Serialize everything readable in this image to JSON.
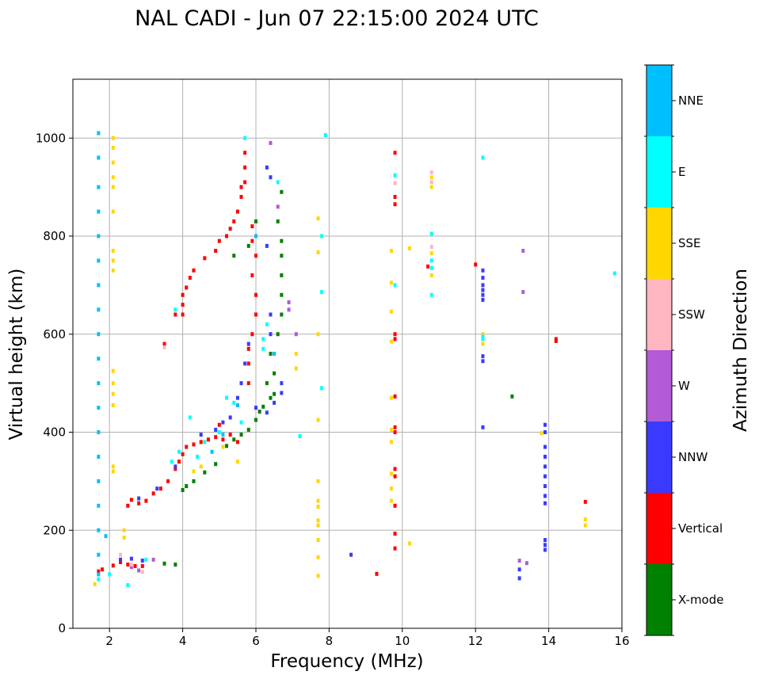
{
  "chart_data": {
    "type": "scatter",
    "title": "NAL CADI - Jun 07 22:15:00 2024 UTC",
    "xlabel": "Frequency (MHz)",
    "ylabel": "Virtual height (km)",
    "xlim": [
      1,
      16
    ],
    "ylim": [
      0,
      1120
    ],
    "xticks": [
      2,
      4,
      6,
      8,
      10,
      12,
      14,
      16
    ],
    "yticks": [
      0,
      200,
      400,
      600,
      800,
      1000
    ],
    "grid": true,
    "colorbar": {
      "label": "Azimuth Direction",
      "categories": [
        "X-mode",
        "Vertical",
        "NNW",
        "W",
        "SSW",
        "SSE",
        "E",
        "NNE"
      ],
      "colors": [
        "#008000",
        "#ff0000",
        "#3a3aff",
        "#b35ad6",
        "#ffb6c1",
        "#ffd700",
        "#00ffff",
        "#00bfff"
      ]
    },
    "echoes": [
      {
        "name": "X-mode",
        "points": [
          [
            3.5,
            132
          ],
          [
            3.8,
            130
          ],
          [
            4.0,
            282
          ],
          [
            4.1,
            290
          ],
          [
            4.3,
            300
          ],
          [
            4.6,
            318
          ],
          [
            4.9,
            335
          ],
          [
            5.2,
            372
          ],
          [
            5.4,
            385
          ],
          [
            5.6,
            395
          ],
          [
            5.8,
            405
          ],
          [
            6.0,
            425
          ],
          [
            6.1,
            442
          ],
          [
            6.2,
            452
          ],
          [
            6.4,
            470
          ],
          [
            6.5,
            478
          ],
          [
            6.3,
            500
          ],
          [
            6.5,
            520
          ],
          [
            6.4,
            560
          ],
          [
            6.6,
            600
          ],
          [
            6.7,
            640
          ],
          [
            6.7,
            680
          ],
          [
            6.7,
            720
          ],
          [
            6.7,
            760
          ],
          [
            6.7,
            790
          ],
          [
            6.6,
            830
          ],
          [
            6.7,
            890
          ],
          [
            6.0,
            830
          ],
          [
            5.8,
            780
          ],
          [
            5.4,
            760
          ],
          [
            13.0,
            473
          ]
        ]
      },
      {
        "name": "Vertical",
        "points": [
          [
            1.7,
            116
          ],
          [
            1.8,
            120
          ],
          [
            2.1,
            128
          ],
          [
            2.3,
            135
          ],
          [
            2.5,
            130
          ],
          [
            2.7,
            127
          ],
          [
            2.9,
            127
          ],
          [
            2.5,
            250
          ],
          [
            2.6,
            262
          ],
          [
            2.8,
            255
          ],
          [
            3.0,
            260
          ],
          [
            3.2,
            275
          ],
          [
            3.4,
            285
          ],
          [
            3.6,
            300
          ],
          [
            3.8,
            325
          ],
          [
            3.9,
            340
          ],
          [
            4.0,
            355
          ],
          [
            4.1,
            370
          ],
          [
            4.3,
            375
          ],
          [
            4.5,
            380
          ],
          [
            4.7,
            385
          ],
          [
            4.9,
            390
          ],
          [
            5.1,
            385
          ],
          [
            5.3,
            395
          ],
          [
            5.5,
            380
          ],
          [
            5.0,
            415
          ],
          [
            4.0,
            640
          ],
          [
            4.0,
            660
          ],
          [
            4.0,
            680
          ],
          [
            4.1,
            695
          ],
          [
            4.2,
            715
          ],
          [
            4.3,
            730
          ],
          [
            4.6,
            755
          ],
          [
            4.9,
            770
          ],
          [
            5.0,
            790
          ],
          [
            5.2,
            800
          ],
          [
            5.3,
            815
          ],
          [
            5.4,
            830
          ],
          [
            5.5,
            850
          ],
          [
            5.6,
            880
          ],
          [
            5.7,
            910
          ],
          [
            5.7,
            940
          ],
          [
            5.7,
            970
          ],
          [
            5.6,
            900
          ],
          [
            5.9,
            820
          ],
          [
            5.9,
            790
          ],
          [
            6.0,
            760
          ],
          [
            5.9,
            720
          ],
          [
            6.0,
            680
          ],
          [
            6.0,
            640
          ],
          [
            5.9,
            600
          ],
          [
            5.8,
            570
          ],
          [
            5.8,
            540
          ],
          [
            5.8,
            500
          ],
          [
            9.8,
            970
          ],
          [
            9.8,
            880
          ],
          [
            9.8,
            865
          ],
          [
            9.8,
            600
          ],
          [
            9.8,
            590
          ],
          [
            9.8,
            410
          ],
          [
            9.8,
            400
          ],
          [
            9.8,
            325
          ],
          [
            9.8,
            310
          ],
          [
            9.8,
            250
          ],
          [
            9.8,
            193
          ],
          [
            9.8,
            163
          ],
          [
            9.3,
            111
          ],
          [
            10.7,
            738
          ],
          [
            12.0,
            742
          ],
          [
            14.2,
            590
          ],
          [
            14.2,
            586
          ],
          [
            15.0,
            258
          ],
          [
            9.8,
            473
          ],
          [
            3.5,
            580
          ],
          [
            3.8,
            640
          ]
        ]
      },
      {
        "name": "NNW",
        "points": [
          [
            2.3,
            140
          ],
          [
            2.6,
            142
          ],
          [
            2.9,
            138
          ],
          [
            2.8,
            265
          ],
          [
            3.3,
            285
          ],
          [
            3.8,
            330
          ],
          [
            4.5,
            395
          ],
          [
            4.9,
            405
          ],
          [
            5.1,
            420
          ],
          [
            5.3,
            430
          ],
          [
            5.5,
            470
          ],
          [
            5.6,
            500
          ],
          [
            5.7,
            540
          ],
          [
            5.8,
            580
          ],
          [
            6.0,
            450
          ],
          [
            6.3,
            440
          ],
          [
            6.5,
            460
          ],
          [
            6.7,
            480
          ],
          [
            6.7,
            500
          ],
          [
            6.4,
            600
          ],
          [
            6.4,
            640
          ],
          [
            6.3,
            780
          ],
          [
            6.3,
            940
          ],
          [
            6.4,
            920
          ],
          [
            8.6,
            150
          ],
          [
            12.2,
            730
          ],
          [
            12.2,
            715
          ],
          [
            12.2,
            700
          ],
          [
            12.2,
            690
          ],
          [
            12.2,
            680
          ],
          [
            12.2,
            670
          ],
          [
            12.2,
            555
          ],
          [
            12.2,
            545
          ],
          [
            12.2,
            410
          ],
          [
            13.2,
            120
          ],
          [
            13.2,
            102
          ],
          [
            13.9,
            415
          ],
          [
            13.9,
            400
          ],
          [
            13.9,
            370
          ],
          [
            13.9,
            350
          ],
          [
            13.9,
            330
          ],
          [
            13.9,
            310
          ],
          [
            13.9,
            290
          ],
          [
            13.9,
            270
          ],
          [
            13.9,
            255
          ],
          [
            13.9,
            180
          ],
          [
            13.9,
            170
          ],
          [
            13.9,
            160
          ]
        ]
      },
      {
        "name": "W",
        "points": [
          [
            2.6,
            125
          ],
          [
            2.8,
            118
          ],
          [
            3.2,
            140
          ],
          [
            6.4,
            990
          ],
          [
            6.6,
            860
          ],
          [
            6.9,
            665
          ],
          [
            6.9,
            650
          ],
          [
            7.1,
            600
          ],
          [
            13.3,
            770
          ],
          [
            13.3,
            686
          ],
          [
            13.4,
            133
          ],
          [
            13.2,
            138
          ]
        ]
      },
      {
        "name": "SSW",
        "points": [
          [
            2.3,
            150
          ],
          [
            2.6,
            130
          ],
          [
            2.9,
            115
          ],
          [
            3.5,
            573
          ],
          [
            10.8,
            930
          ],
          [
            10.8,
            910
          ],
          [
            10.8,
            778
          ],
          [
            9.8,
            908
          ]
        ]
      },
      {
        "name": "SSE",
        "points": [
          [
            2.1,
            1000
          ],
          [
            2.1,
            980
          ],
          [
            2.1,
            950
          ],
          [
            2.1,
            920
          ],
          [
            2.1,
            900
          ],
          [
            2.1,
            850
          ],
          [
            2.1,
            770
          ],
          [
            2.1,
            750
          ],
          [
            2.1,
            730
          ],
          [
            2.1,
            525
          ],
          [
            2.1,
            500
          ],
          [
            2.1,
            478
          ],
          [
            2.1,
            455
          ],
          [
            2.1,
            330
          ],
          [
            2.1,
            320
          ],
          [
            1.6,
            90
          ],
          [
            2.4,
            185
          ],
          [
            2.4,
            200
          ],
          [
            4.3,
            320
          ],
          [
            4.5,
            330
          ],
          [
            5.5,
            340
          ],
          [
            5.1,
            370
          ],
          [
            7.1,
            560
          ],
          [
            7.1,
            530
          ],
          [
            7.7,
            836
          ],
          [
            7.7,
            767
          ],
          [
            7.7,
            600
          ],
          [
            7.7,
            425
          ],
          [
            7.7,
            300
          ],
          [
            7.7,
            260
          ],
          [
            7.7,
            248
          ],
          [
            7.7,
            220
          ],
          [
            7.7,
            210
          ],
          [
            7.7,
            180
          ],
          [
            7.7,
            145
          ],
          [
            7.7,
            107
          ],
          [
            9.7,
            770
          ],
          [
            9.7,
            705
          ],
          [
            9.7,
            646
          ],
          [
            9.7,
            585
          ],
          [
            9.7,
            470
          ],
          [
            9.7,
            405
          ],
          [
            9.7,
            380
          ],
          [
            9.7,
            315
          ],
          [
            9.7,
            285
          ],
          [
            9.7,
            260
          ],
          [
            10.2,
            173
          ],
          [
            10.2,
            775
          ],
          [
            10.8,
            920
          ],
          [
            10.8,
            900
          ],
          [
            10.8,
            765
          ],
          [
            10.8,
            720
          ],
          [
            12.2,
            600
          ],
          [
            12.2,
            580
          ],
          [
            13.8,
            398
          ],
          [
            15.0,
            222
          ],
          [
            15.0,
            210
          ]
        ]
      },
      {
        "name": "E",
        "points": [
          [
            1.7,
            100
          ],
          [
            2.0,
            110
          ],
          [
            2.5,
            88
          ],
          [
            3.0,
            140
          ],
          [
            3.7,
            340
          ],
          [
            3.9,
            360
          ],
          [
            4.2,
            430
          ],
          [
            4.4,
            350
          ],
          [
            4.6,
            380
          ],
          [
            5.0,
            400
          ],
          [
            5.2,
            470
          ],
          [
            5.4,
            460
          ],
          [
            5.6,
            420
          ],
          [
            5.7,
            1000
          ],
          [
            3.8,
            650
          ],
          [
            6.2,
            570
          ],
          [
            6.2,
            590
          ],
          [
            6.3,
            620
          ],
          [
            6.6,
            910
          ],
          [
            7.2,
            392
          ],
          [
            7.9,
            1006
          ],
          [
            7.8,
            800
          ],
          [
            7.8,
            686
          ],
          [
            7.8,
            490
          ],
          [
            10.8,
            805
          ],
          [
            10.8,
            750
          ],
          [
            10.8,
            735
          ],
          [
            10.8,
            680
          ],
          [
            9.8,
            924
          ],
          [
            9.8,
            700
          ],
          [
            12.2,
            960
          ],
          [
            12.2,
            590
          ],
          [
            12.2,
            595
          ],
          [
            15.8,
            724
          ]
        ]
      },
      {
        "name": "NNE",
        "points": [
          [
            1.7,
            1010
          ],
          [
            1.7,
            960
          ],
          [
            1.7,
            900
          ],
          [
            1.7,
            850
          ],
          [
            1.7,
            800
          ],
          [
            1.7,
            750
          ],
          [
            1.7,
            700
          ],
          [
            1.7,
            650
          ],
          [
            1.7,
            600
          ],
          [
            1.7,
            550
          ],
          [
            1.7,
            500
          ],
          [
            1.7,
            450
          ],
          [
            1.7,
            400
          ],
          [
            1.7,
            350
          ],
          [
            1.7,
            300
          ],
          [
            1.7,
            250
          ],
          [
            1.7,
            200
          ],
          [
            1.7,
            150
          ],
          [
            1.7,
            110
          ],
          [
            1.9,
            188
          ],
          [
            4.8,
            360
          ],
          [
            5.1,
            395
          ],
          [
            5.5,
            455
          ],
          [
            6.0,
            800
          ],
          [
            6.5,
            560
          ]
        ]
      }
    ]
  }
}
